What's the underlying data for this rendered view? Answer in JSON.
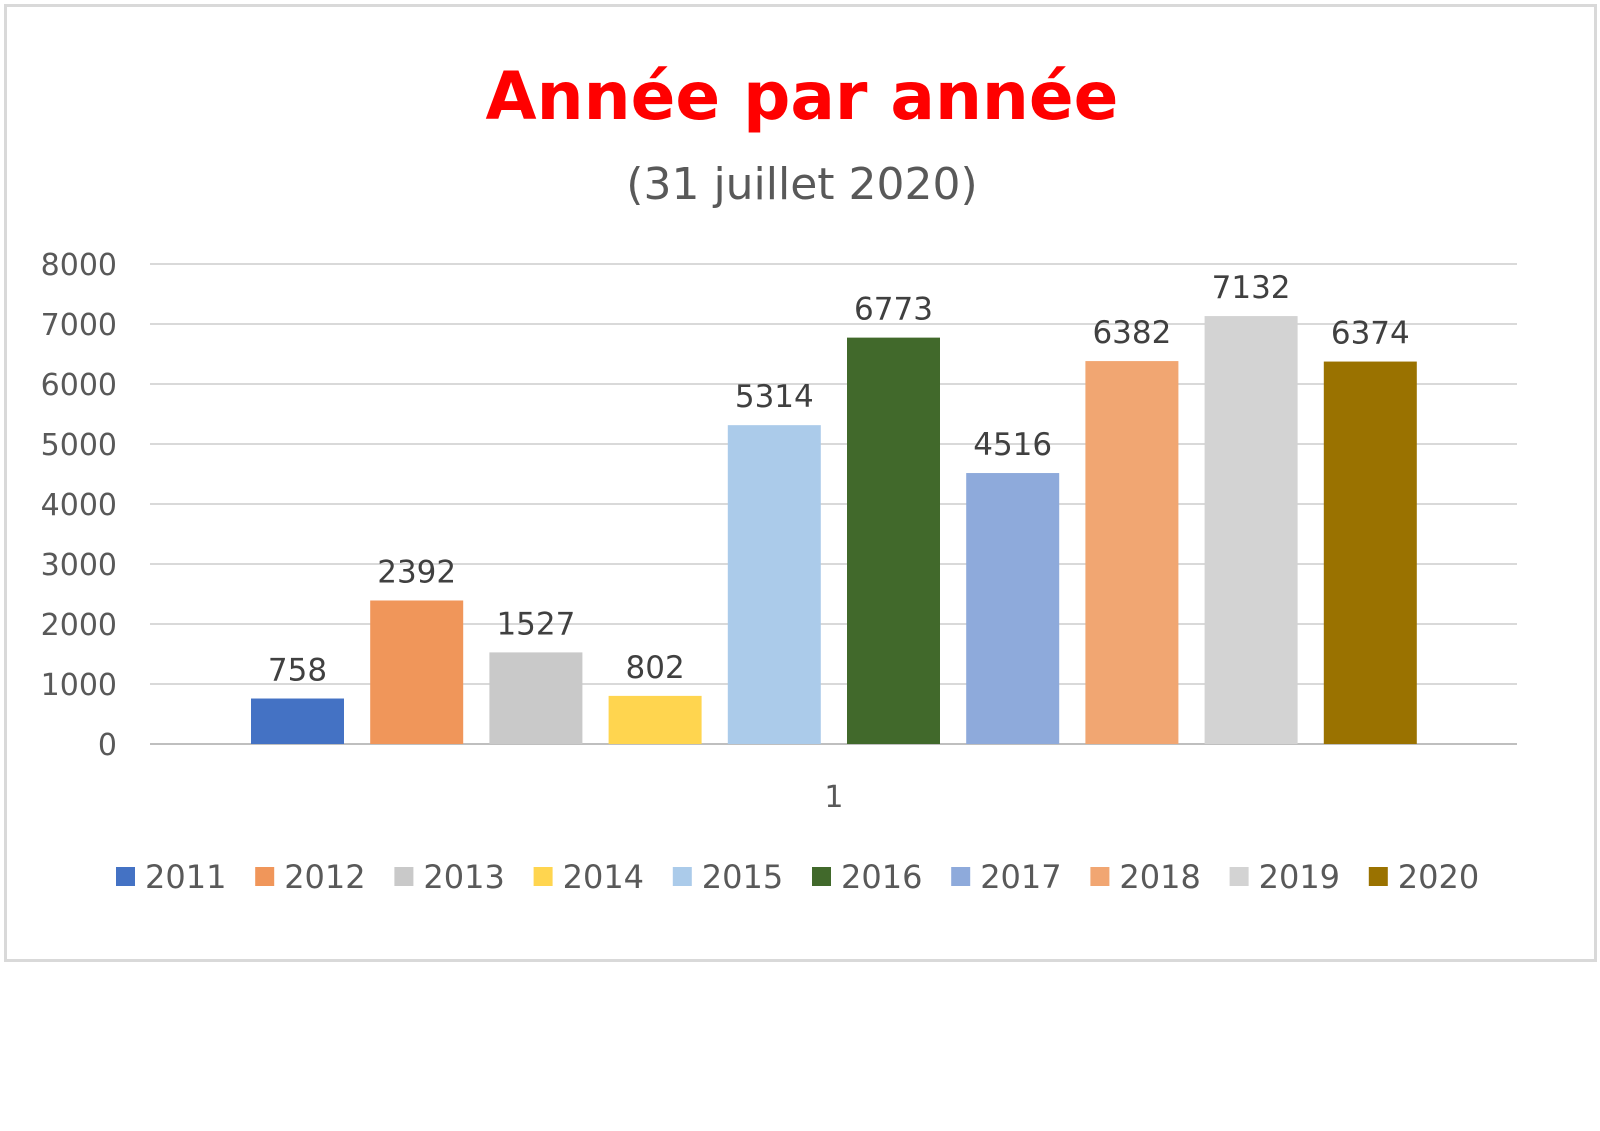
{
  "chart_data": {
    "type": "bar",
    "title": "Année par année",
    "subtitle": "(31 juillet 2020)",
    "categories": [
      "1"
    ],
    "ylim": [
      0,
      8000
    ],
    "yticks": [
      0,
      1000,
      2000,
      3000,
      4000,
      5000,
      6000,
      7000,
      8000
    ],
    "grid": true,
    "legend_position": "bottom",
    "data_labels": true,
    "series": [
      {
        "name": "2011",
        "values": [
          758
        ],
        "color": "#4472c4"
      },
      {
        "name": "2012",
        "values": [
          2392
        ],
        "color": "#f0965a"
      },
      {
        "name": "2013",
        "values": [
          1527
        ],
        "color": "#c9c9c9"
      },
      {
        "name": "2014",
        "values": [
          802
        ],
        "color": "#ffd54f"
      },
      {
        "name": "2015",
        "values": [
          5314
        ],
        "color": "#abcbea"
      },
      {
        "name": "2016",
        "values": [
          6773
        ],
        "color": "#41692b"
      },
      {
        "name": "2017",
        "values": [
          4516
        ],
        "color": "#8eaadb"
      },
      {
        "name": "2018",
        "values": [
          6382
        ],
        "color": "#f1a672"
      },
      {
        "name": "2019",
        "values": [
          7132
        ],
        "color": "#d3d3d3"
      },
      {
        "name": "2020",
        "values": [
          6374
        ],
        "color": "#9a7200"
      }
    ]
  }
}
